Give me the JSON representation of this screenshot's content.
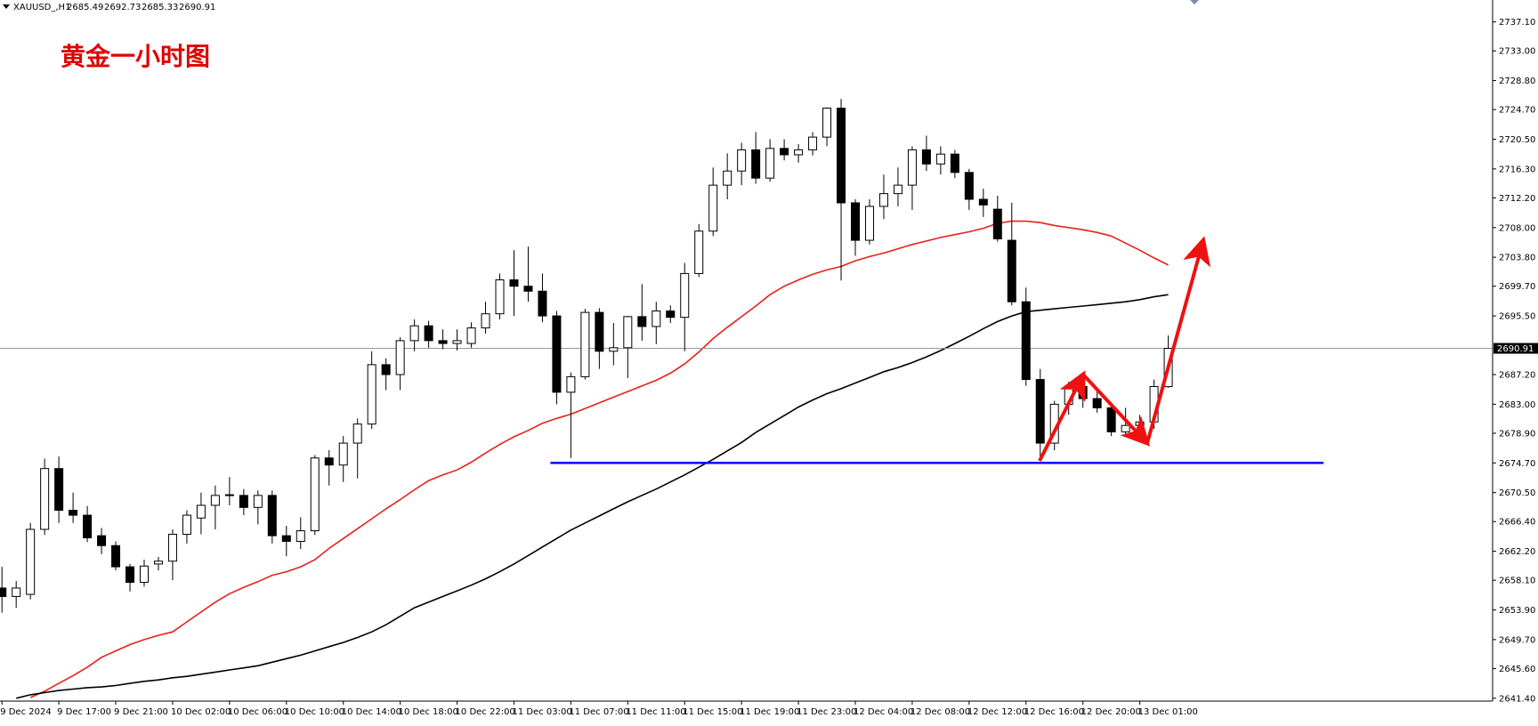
{
  "chart_data": {
    "type": "candlestick",
    "title": "XAUUSD_,H1",
    "annotation": "黄金一小时图",
    "categories": [
      "9 Dec 2024",
      null,
      null,
      null,
      "9 Dec 17:00",
      null,
      null,
      null,
      "9 Dec 21:00",
      null,
      null,
      null,
      "10 Dec 02:00",
      null,
      null,
      null,
      "10 Dec 06:00",
      null,
      null,
      null,
      "10 Dec 10:00",
      null,
      null,
      null,
      "10 Dec 14:00",
      null,
      null,
      null,
      "10 Dec 18:00",
      null,
      null,
      null,
      "10 Dec 22:00",
      null,
      null,
      null,
      "11 Dec 03:00",
      null,
      null,
      null,
      "11 Dec 07:00",
      null,
      null,
      null,
      "11 Dec 11:00",
      null,
      null,
      null,
      "11 Dec 15:00",
      null,
      null,
      null,
      "11 Dec 19:00",
      null,
      null,
      null,
      "11 Dec 23:00",
      null,
      null,
      null,
      "12 Dec 04:00",
      null,
      null,
      null,
      "12 Dec 08:00",
      null,
      null,
      null,
      "12 Dec 12:00",
      null,
      null,
      null,
      "12 Dec 16:00",
      null,
      null,
      null,
      "12 Dec 20:00",
      null,
      null,
      null,
      "13 Dec 01:00",
      null,
      null
    ],
    "open": [
      2657.0,
      2655.8,
      2656.1,
      2665.3,
      2673.9,
      2668.0,
      2667.3,
      2664.4,
      2663.0,
      2660.0,
      2657.8,
      2660.4,
      2660.8,
      2664.6,
      2666.9,
      2668.7,
      2670.1,
      2670.1,
      2668.4,
      2670.1,
      2664.4,
      2663.6,
      2665.1,
      2675.4,
      2674.4,
      2677.5,
      2680.2,
      2688.6,
      2687.2,
      2692.0,
      2694.1,
      2692.0,
      2691.6,
      2691.6,
      2693.8,
      2695.8,
      2700.6,
      2699.7,
      2699.0,
      2695.5,
      2684.7,
      2686.9,
      2696.0,
      2690.5,
      2691.0,
      2695.4,
      2694.0,
      2696.2,
      2695.3,
      2701.5,
      2707.5,
      2714.0,
      2716.0,
      2719.0,
      2715.0,
      2719.2,
      2718.3,
      2719.0,
      2720.8,
      2724.9,
      2711.5,
      2706.2,
      2711.0,
      2712.8,
      2714.0,
      2719.0,
      2717.0,
      2718.4,
      2715.8,
      2712.0,
      2710.6,
      2706.2,
      2697.5,
      2686.5,
      2677.5,
      2683.0,
      2685.5,
      2683.8,
      2682.5,
      2679.1,
      2680.0,
      2680.5,
      2685.49
    ],
    "high": [
      2660.0,
      2658.0,
      2666.2,
      2675.3,
      2675.6,
      2670.5,
      2668.6,
      2665.5,
      2663.6,
      2660.4,
      2661.0,
      2661.4,
      2665.3,
      2668.0,
      2670.5,
      2671.5,
      2672.7,
      2671.0,
      2670.8,
      2670.8,
      2665.8,
      2667.0,
      2675.8,
      2676.5,
      2678.5,
      2681.0,
      2690.5,
      2689.5,
      2692.5,
      2695.0,
      2694.8,
      2693.6,
      2693.6,
      2694.6,
      2697.5,
      2701.5,
      2704.8,
      2705.3,
      2701.5,
      2696.2,
      2687.5,
      2696.5,
      2696.6,
      2694.5,
      2695.5,
      2700.0,
      2697.5,
      2697.0,
      2703.0,
      2708.5,
      2716.5,
      2718.5,
      2720.0,
      2721.5,
      2720.5,
      2720.5,
      2719.8,
      2721.5,
      2725.0,
      2726.2,
      2712.0,
      2712.0,
      2715.5,
      2716.5,
      2719.5,
      2721.0,
      2719.5,
      2719.0,
      2716.3,
      2713.5,
      2712.5,
      2711.5,
      2699.5,
      2688.0,
      2683.5,
      2686.2,
      2686.8,
      2684.8,
      2683.3,
      2682.5,
      2681.5,
      2686.5,
      2692.73
    ],
    "low": [
      2653.5,
      2654.2,
      2655.4,
      2664.5,
      2666.2,
      2666.2,
      2663.5,
      2661.8,
      2659.5,
      2656.5,
      2657.2,
      2659.5,
      2658.1,
      2663.3,
      2664.6,
      2665.3,
      2668.7,
      2667.3,
      2666.0,
      2663.3,
      2661.5,
      2662.5,
      2664.5,
      2671.5,
      2672.0,
      2672.5,
      2679.5,
      2685.0,
      2685.0,
      2690.5,
      2691.0,
      2690.8,
      2690.6,
      2691.0,
      2693.0,
      2695.0,
      2695.5,
      2697.5,
      2694.6,
      2683.0,
      2675.4,
      2686.5,
      2688.0,
      2688.5,
      2686.7,
      2692.0,
      2691.5,
      2694.5,
      2690.5,
      2701.0,
      2706.8,
      2712.0,
      2714.0,
      2714.2,
      2714.5,
      2717.5,
      2717.2,
      2718.2,
      2719.5,
      2700.5,
      2704.0,
      2705.6,
      2709.2,
      2711.0,
      2710.5,
      2716.0,
      2715.5,
      2715.0,
      2710.5,
      2709.5,
      2706.0,
      2697.0,
      2685.6,
      2675.6,
      2676.5,
      2681.5,
      2682.5,
      2681.8,
      2678.5,
      2678.5,
      2678.8,
      2679.5,
      2685.33
    ],
    "close": [
      2655.8,
      2657.0,
      2665.3,
      2673.9,
      2668.0,
      2667.3,
      2664.1,
      2663.0,
      2660.0,
      2657.8,
      2660.1,
      2660.8,
      2664.6,
      2667.3,
      2668.7,
      2670.1,
      2670.2,
      2668.4,
      2670.1,
      2664.4,
      2663.6,
      2665.1,
      2675.4,
      2674.4,
      2677.5,
      2680.2,
      2688.6,
      2687.2,
      2692.0,
      2694.1,
      2692.0,
      2691.6,
      2692.0,
      2693.8,
      2695.8,
      2700.6,
      2699.7,
      2699.0,
      2695.5,
      2684.7,
      2686.9,
      2696.0,
      2690.5,
      2691.0,
      2695.4,
      2694.0,
      2696.2,
      2695.3,
      2701.5,
      2707.5,
      2714.0,
      2716.0,
      2719.0,
      2715.0,
      2719.2,
      2718.3,
      2719.0,
      2720.8,
      2724.9,
      2711.5,
      2706.2,
      2711.0,
      2712.8,
      2714.0,
      2719.0,
      2717.0,
      2718.4,
      2715.8,
      2712.0,
      2711.2,
      2706.4,
      2697.5,
      2686.5,
      2677.5,
      2683.0,
      2685.5,
      2683.8,
      2682.5,
      2679.1,
      2680.0,
      2680.5,
      2685.5,
      2690.91
    ],
    "up_color": "#ffffff",
    "down_color": "#000000",
    "moving_averages": [
      {
        "color": "#e8201c",
        "values": [
          null,
          null,
          2641.5,
          2642.4,
          2643.5,
          2644.6,
          2645.8,
          2647.2,
          2648.1,
          2649.0,
          2649.7,
          2650.3,
          2650.8,
          2652.2,
          2653.6,
          2655.0,
          2656.2,
          2657.1,
          2657.9,
          2658.8,
          2659.3,
          2660.0,
          2661.0,
          2662.6,
          2664.0,
          2665.4,
          2666.8,
          2668.2,
          2669.5,
          2670.9,
          2672.2,
          2673.0,
          2673.7,
          2674.8,
          2676.1,
          2677.3,
          2678.4,
          2679.3,
          2680.3,
          2681.0,
          2681.6,
          2682.4,
          2683.2,
          2684.0,
          2684.8,
          2685.6,
          2686.4,
          2687.4,
          2688.7,
          2690.4,
          2692.3,
          2693.9,
          2695.4,
          2696.9,
          2698.5,
          2699.7,
          2700.6,
          2701.4,
          2702.0,
          2702.5,
          2703.3,
          2703.9,
          2704.4,
          2705.0,
          2705.6,
          2706.1,
          2706.6,
          2707.0,
          2707.4,
          2707.9,
          2708.6,
          2708.9,
          2708.9,
          2708.7,
          2708.3,
          2708.0,
          2707.7,
          2707.3,
          2706.8,
          2705.8,
          2704.8,
          2703.7,
          2702.7
        ]
      },
      {
        "color": "#000000",
        "values": [
          null,
          2641.4,
          2641.9,
          2642.2,
          2642.5,
          2642.7,
          2642.9,
          2643.0,
          2643.2,
          2643.5,
          2643.8,
          2644.0,
          2644.3,
          2644.5,
          2644.8,
          2645.1,
          2645.4,
          2645.7,
          2646.0,
          2646.5,
          2647.0,
          2647.5,
          2648.1,
          2648.7,
          2649.3,
          2650.0,
          2650.8,
          2651.8,
          2653.0,
          2654.2,
          2655.0,
          2655.8,
          2656.6,
          2657.4,
          2658.3,
          2659.3,
          2660.4,
          2661.6,
          2662.8,
          2664.0,
          2665.2,
          2666.2,
          2667.2,
          2668.2,
          2669.2,
          2670.1,
          2671.0,
          2672.0,
          2673.0,
          2674.1,
          2675.2,
          2676.4,
          2677.6,
          2679.0,
          2680.2,
          2681.4,
          2682.6,
          2683.6,
          2684.5,
          2685.2,
          2686.0,
          2686.8,
          2687.6,
          2688.2,
          2688.9,
          2689.7,
          2690.6,
          2691.6,
          2692.6,
          2693.7,
          2694.7,
          2695.5,
          2696.1,
          2696.3,
          2696.5,
          2696.7,
          2696.9,
          2697.1,
          2697.3,
          2697.5,
          2697.8,
          2698.2,
          2698.5
        ]
      }
    ],
    "support_level": {
      "value": 2674.7,
      "color": "#0000ff"
    },
    "ylim": [
      2641.0,
      2740.2
    ],
    "yticks": [
      {
        "value": 2641.4,
        "label": "2641.40"
      },
      {
        "value": 2645.6,
        "label": "2645.60"
      },
      {
        "value": 2649.7,
        "label": "2649.70"
      },
      {
        "value": 2653.9,
        "label": "2653.90"
      },
      {
        "value": 2658.1,
        "label": "2658.10"
      },
      {
        "value": 2662.2,
        "label": "2662.20"
      },
      {
        "value": 2666.4,
        "label": "2666.40"
      },
      {
        "value": 2670.5,
        "label": "2670.50"
      },
      {
        "value": 2674.7,
        "label": "2674.70"
      },
      {
        "value": 2678.9,
        "label": "2678.90"
      },
      {
        "value": 2683.0,
        "label": "2683.00"
      },
      {
        "value": 2687.2,
        "label": "2687.20"
      },
      {
        "value": 2695.5,
        "label": "2695.50"
      },
      {
        "value": 2699.7,
        "label": "2699.70"
      },
      {
        "value": 2703.8,
        "label": "2703.80"
      },
      {
        "value": 2708.0,
        "label": "2708.00"
      },
      {
        "value": 2712.2,
        "label": "2712.20"
      },
      {
        "value": 2716.3,
        "label": "2716.30"
      },
      {
        "value": 2720.5,
        "label": "2720.50"
      },
      {
        "value": 2724.7,
        "label": "2724.70"
      },
      {
        "value": 2728.8,
        "label": "2728.80"
      },
      {
        "value": 2733.0,
        "label": "2733.00"
      },
      {
        "value": 2737.1,
        "label": "2737.10"
      }
    ]
  }
}
